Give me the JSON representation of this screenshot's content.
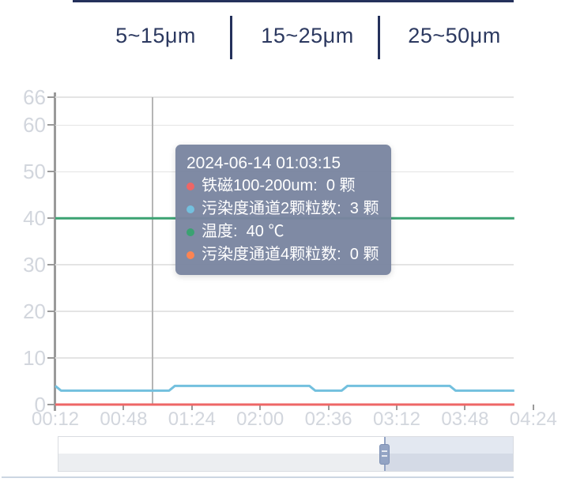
{
  "header": {
    "tabs": [
      {
        "label": "5~15μm"
      },
      {
        "label": "15~25μm"
      },
      {
        "label": "25~50μm"
      }
    ]
  },
  "tooltip": {
    "title": "2024-06-14 01:03:15",
    "rows": [
      {
        "label": "铁磁100-200um",
        "value": "0",
        "unit": "颗",
        "color": "#ee6666"
      },
      {
        "label": "污染度通道2颗粒数",
        "value": "3",
        "unit": "颗",
        "color": "#73c0de"
      },
      {
        "label": "温度",
        "value": "40",
        "unit": "℃",
        "color": "#3ba272"
      },
      {
        "label": "污染度通道4颗粒数",
        "value": "0",
        "unit": "颗",
        "color": "#fc8452"
      }
    ]
  },
  "chart_data": {
    "type": "line",
    "title": "",
    "xlabel": "",
    "ylabel": "",
    "ylim": [
      0,
      66
    ],
    "y_ticks": [
      0,
      10,
      20,
      30,
      40,
      50,
      60,
      66
    ],
    "x_tick_labels": [
      "00:12",
      "00:48",
      "01:24",
      "02:00",
      "02:36",
      "03:12",
      "03:48",
      "04:24"
    ],
    "x_range": [
      "00:12",
      "04:14"
    ],
    "axis_pointer_time": "01:03:15",
    "grid": true,
    "legend_position": "none",
    "series": [
      {
        "name": "污染度通道4颗粒数",
        "color": "#fc8452",
        "points": [
          [
            "00:12",
            0
          ],
          [
            "04:14",
            0
          ]
        ]
      },
      {
        "name": "温度",
        "color": "#3ba272",
        "points": [
          [
            "00:12",
            40
          ],
          [
            "04:14",
            40
          ]
        ]
      },
      {
        "name": "污染度通道2颗粒数",
        "color": "#73c0de",
        "points": [
          [
            "00:12",
            4
          ],
          [
            "00:15",
            3
          ],
          [
            "01:12",
            3
          ],
          [
            "01:15",
            4
          ],
          [
            "02:26",
            4
          ],
          [
            "02:29",
            3
          ],
          [
            "02:43",
            3
          ],
          [
            "02:46",
            4
          ],
          [
            "03:40",
            4
          ],
          [
            "03:43",
            3
          ],
          [
            "04:14",
            3
          ]
        ]
      },
      {
        "name": "铁磁100-200um",
        "color": "#ee6666",
        "points": [
          [
            "00:12",
            0
          ],
          [
            "04:14",
            0
          ]
        ]
      }
    ]
  },
  "slider": {
    "start_pct": 71.8,
    "end_pct": 100
  },
  "colors": {
    "accent_navy": "#24315b",
    "axis_label": "#d2d6dd",
    "axis_line": "#9a9a9a",
    "gridline": "#e4e4e4",
    "axis_pointer": "#b5b5b5",
    "tooltip_bg": "#7a85a0"
  }
}
